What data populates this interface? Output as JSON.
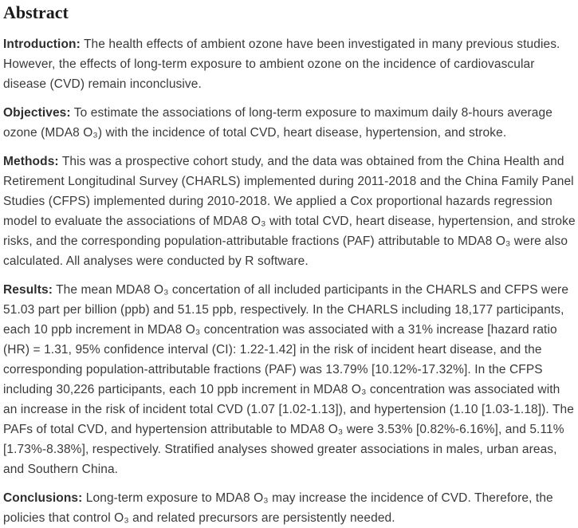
{
  "document": {
    "heading": "Abstract",
    "colors": {
      "background": "#ffffff",
      "heading_text": "#1a1a1a",
      "body_text": "#3a3a3a"
    },
    "paragraphs": [
      {
        "label": "Introduction:",
        "text": " The health effects of ambient ozone have been investigated in many previous studies. However, the effects of long-term exposure to ambient ozone on the incidence of cardiovascular disease (CVD) remain inconclusive."
      },
      {
        "label": "Objectives:",
        "text": " To estimate the associations of long-term exposure to maximum daily 8-hours average ozone (MDA8 O₃) with the incidence of total CVD, heart disease, hypertension, and stroke."
      },
      {
        "label": "Methods:",
        "text": " This was a prospective cohort study, and the data was obtained from the China Health and Retirement Longitudinal Survey (CHARLS) implemented during 2011-2018 and the China Family Panel Studies (CFPS) implemented during 2010-2018. We applied a Cox proportional hazards regression model to evaluate the associations of MDA8 O₃ with total CVD, heart disease, hypertension, and stroke risks, and the corresponding population-attributable fractions (PAF) attributable to MDA8 O₃ were also calculated. All analyses were conducted by R software."
      },
      {
        "label": "Results:",
        "text": " The mean MDA8 O₃ concertation of all included participants in the CHARLS and CFPS were 51.03 part per billion (ppb) and 51.15 ppb, respectively. In the CHARLS including 18,177 participants, each 10 ppb increment in MDA8 O₃ concentration was associated with a 31% increase [hazard ratio (HR) = 1.31, 95% confidence interval (CI): 1.22-1.42] in the risk of incident heart disease, and the corresponding population-attributable fractions (PAF) was 13.79% [10.12%-17.32%]. In the CFPS including 30,226 participants, each 10 ppb increment in MDA8 O₃ concentration was associated with an increase in the risk of incident total CVD (1.07 [1.02-1.13]), and hypertension (1.10 [1.03-1.18]). The PAFs of total CVD, and hypertension attributable to MDA8 O₃ were 3.53% [0.82%-6.16%], and 5.11% [1.73%-8.38%], respectively. Stratified analyses showed greater associations in males, urban areas, and Southern China."
      },
      {
        "label": "Conclusions:",
        "text": " Long-term exposure to MDA8 O₃ may increase the incidence of CVD. Therefore, the policies that control O₃ and related precursors are persistently needed."
      }
    ]
  }
}
